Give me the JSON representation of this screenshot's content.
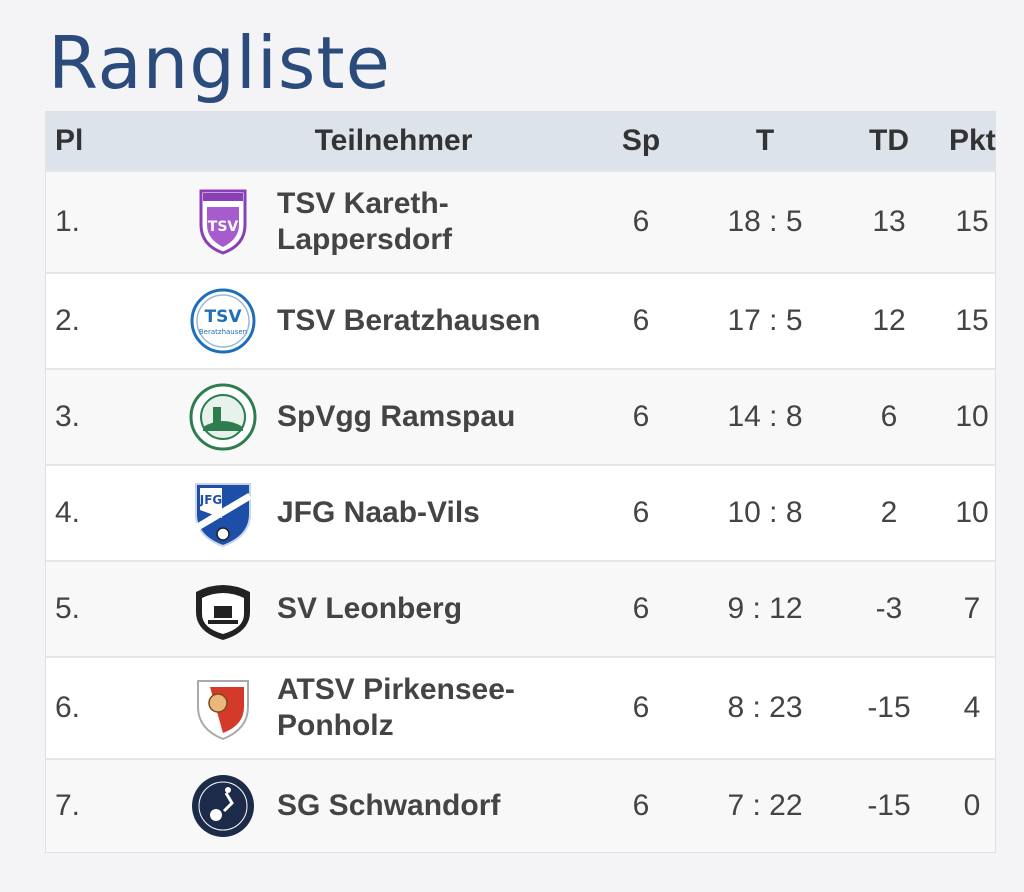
{
  "page": {
    "title": "Rangliste"
  },
  "table": {
    "headers": {
      "pl": "Pl",
      "team": "Teilnehmer",
      "sp": "Sp",
      "t": "T",
      "td": "TD",
      "pkt": "Pkt"
    },
    "rows": [
      {
        "pl": "1.",
        "team_line1": "TSV Kareth-",
        "team_line2": "Lappersdorf",
        "sp": "6",
        "t": "18 : 5",
        "td": "13",
        "pkt": "15",
        "logo": "tsv-kareth-logo",
        "logo_color": "#8a3fb5"
      },
      {
        "pl": "2.",
        "team_line1": "TSV Beratzhausen",
        "team_line2": "",
        "sp": "6",
        "t": "17 : 5",
        "td": "12",
        "pkt": "15",
        "logo": "tsv-beratzhausen-logo",
        "logo_color": "#1e6fb8"
      },
      {
        "pl": "3.",
        "team_line1": "SpVgg Ramspau",
        "team_line2": "",
        "sp": "6",
        "t": "14 : 8",
        "td": "6",
        "pkt": "10",
        "logo": "spvgg-ramspau-logo",
        "logo_color": "#2e7d4f"
      },
      {
        "pl": "4.",
        "team_line1": "JFG Naab-Vils",
        "team_line2": "",
        "sp": "6",
        "t": "10 : 8",
        "td": "2",
        "pkt": "10",
        "logo": "jfg-naab-vils-logo",
        "logo_color": "#1e4fa8"
      },
      {
        "pl": "5.",
        "team_line1": "SV Leonberg",
        "team_line2": "",
        "sp": "6",
        "t": "9 : 12",
        "td": "-3",
        "pkt": "7",
        "logo": "sv-leonberg-logo",
        "logo_color": "#222222"
      },
      {
        "pl": "6.",
        "team_line1": "ATSV Pirkensee-",
        "team_line2": "Ponholz",
        "sp": "6",
        "t": "8 : 23",
        "td": "-15",
        "pkt": "4",
        "logo": "atsv-pirkensee-logo",
        "logo_color": "#d33a2a"
      },
      {
        "pl": "7.",
        "team_line1": "SG Schwandorf",
        "team_line2": "",
        "sp": "6",
        "t": "7 : 22",
        "td": "-15",
        "pkt": "0",
        "logo": "sg-schwandorf-logo",
        "logo_color": "#1c2b4a"
      }
    ]
  }
}
